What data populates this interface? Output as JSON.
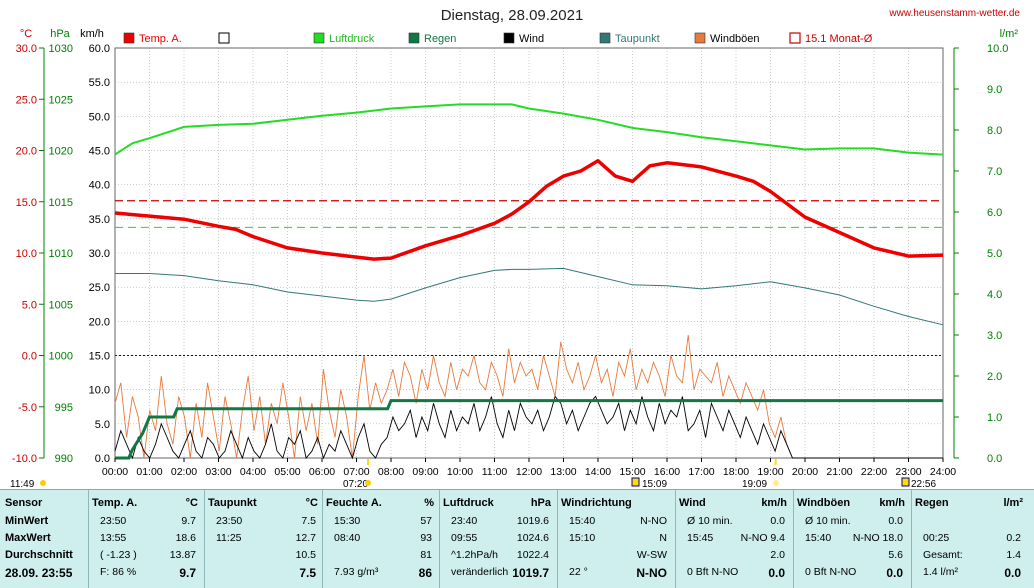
{
  "site": "www.heusenstamm-wetter.de",
  "title": "Dienstag, 28.09.2021",
  "colors": {
    "temp": "#ee0000",
    "pressure": "#22dd22",
    "rain": "#117744",
    "wind": "#000000",
    "dew": "#337777",
    "gust": "#e87a3c",
    "monthavg": "#cc0000",
    "zero": "#0000cc",
    "frame": "#008000"
  },
  "legend": [
    {
      "label": "Temp. A.",
      "color": "#ee0000",
      "style": "fill"
    },
    {
      "label": "",
      "color": "#ffffff",
      "style": "box"
    },
    {
      "label": "Luftdruck",
      "color": "#22dd22",
      "style": "fill"
    },
    {
      "label": "Regen",
      "color": "#117744",
      "style": "fill"
    },
    {
      "label": "Wind",
      "color": "#000000",
      "style": "fill"
    },
    {
      "label": "Taupunkt",
      "color": "#337777",
      "style": "fill"
    },
    {
      "label": "Windböen",
      "color": "#e87a3c",
      "style": "fill"
    },
    {
      "label": "15.1 Monat-Ø",
      "color": "#cc0000",
      "style": "outline"
    }
  ],
  "axis_units": {
    "temp": "°C",
    "pressure": "hPa",
    "wind": "km/h",
    "rain": "l/m²"
  },
  "ticks": {
    "temp": [
      "30.0",
      "25.0",
      "20.0",
      "15.0",
      "10.0",
      "5.0",
      "0.0",
      "-5.0",
      "-10.0"
    ],
    "pressure": [
      "1030",
      "1025",
      "1020",
      "1015",
      "1010",
      "1005",
      "1000",
      "995",
      "990"
    ],
    "wind": [
      "60.0",
      "55.0",
      "50.0",
      "45.0",
      "40.0",
      "35.0",
      "30.0",
      "25.0",
      "20.0",
      "15.0",
      "10.0",
      "5.0",
      "0.0"
    ],
    "rain": [
      "10.0",
      "9.0",
      "8.0",
      "7.0",
      "6.0",
      "5.0",
      "4.0",
      "3.0",
      "2.0",
      "1.0",
      "0.0"
    ],
    "time": [
      "00:00",
      "01:00",
      "02:00",
      "03:00",
      "04:00",
      "05:00",
      "06:00",
      "07:00",
      "08:00",
      "09:00",
      "10:00",
      "11:00",
      "12:00",
      "13:00",
      "14:00",
      "15:00",
      "16:00",
      "17:00",
      "18:00",
      "19:00",
      "20:00",
      "21:00",
      "22:00",
      "23:00",
      "24:00"
    ]
  },
  "sun_markers": {
    "left": "11:49",
    "sunrise": "07:20",
    "moon1": "15:09",
    "sunset": "19:09",
    "moon2": "22:56"
  },
  "chart_data": {
    "type": "line",
    "title": "Dienstag, 28.09.2021",
    "x_unit": "hours",
    "xlim": [
      0,
      24
    ],
    "ylim_temp": [
      -10,
      30
    ],
    "ylim_pressure": [
      990,
      1030
    ],
    "ylim_wind": [
      0,
      60
    ],
    "ylim_rain": [
      0,
      10
    ],
    "month_avg_temp": 15.1,
    "reference_lines": {
      "temp_green_dash": 12.5,
      "temp_zero": 0.0
    },
    "series": [
      {
        "name": "Temp. A.",
        "axis": "temp",
        "x": [
          0,
          1,
          2,
          3,
          3.5,
          4,
          5,
          6,
          7,
          7.5,
          8,
          9,
          10,
          11,
          11.5,
          12,
          12.5,
          13,
          13.5,
          14,
          14.5,
          15,
          15.5,
          16,
          17,
          18,
          18.5,
          19,
          20,
          21,
          22,
          23,
          24
        ],
        "values": [
          13.9,
          13.6,
          13.3,
          12.6,
          12.3,
          11.6,
          10.5,
          10.0,
          9.6,
          9.4,
          9.5,
          10.7,
          11.7,
          12.9,
          13.8,
          15.0,
          16.5,
          17.5,
          18.0,
          19.0,
          17.5,
          17.0,
          18.5,
          18.8,
          18.4,
          17.5,
          17.0,
          16.0,
          13.5,
          12.0,
          10.5,
          9.7,
          9.8
        ]
      },
      {
        "name": "Taupunkt",
        "axis": "temp",
        "x": [
          0,
          1,
          2,
          3,
          4,
          5,
          6,
          7,
          7.5,
          8,
          9,
          10,
          11,
          11.5,
          12,
          13,
          14,
          15,
          16,
          17,
          18,
          19,
          20,
          21,
          22,
          23,
          24
        ],
        "values": [
          8.0,
          8.0,
          7.8,
          7.3,
          6.9,
          6.2,
          5.8,
          5.4,
          5.3,
          5.5,
          6.6,
          7.6,
          8.3,
          8.4,
          8.4,
          8.5,
          7.7,
          6.9,
          6.8,
          6.5,
          6.8,
          7.2,
          6.6,
          5.9,
          4.8,
          3.8,
          3.0
        ]
      },
      {
        "name": "Luftdruck",
        "axis": "pressure",
        "x": [
          0,
          0.5,
          1,
          2,
          3,
          4,
          5,
          6,
          7,
          8,
          9,
          10,
          11,
          11.5,
          12,
          13,
          14,
          15,
          16,
          17,
          18,
          19,
          20,
          21,
          22,
          23,
          24
        ],
        "values": [
          1019.6,
          1020.7,
          1021.2,
          1022.3,
          1022.5,
          1022.6,
          1023.0,
          1023.4,
          1023.7,
          1024.1,
          1024.3,
          1024.5,
          1024.5,
          1024.5,
          1024.1,
          1023.6,
          1023.0,
          1022.2,
          1021.8,
          1021.3,
          1020.9,
          1020.5,
          1020.1,
          1020.2,
          1020.2,
          1019.8,
          1019.6
        ]
      },
      {
        "name": "Regen",
        "axis": "rain",
        "x": [
          0,
          0.4,
          0.5,
          0.8,
          1.0,
          1.7,
          1.8,
          2.0,
          7.9,
          8.0,
          24
        ],
        "values": [
          0,
          0,
          0.2,
          0.6,
          1.0,
          1.0,
          1.2,
          1.2,
          1.2,
          1.4,
          1.4
        ]
      },
      {
        "name": "Wind",
        "axis": "wind",
        "values": [
          1,
          4,
          2,
          0,
          3,
          1,
          0,
          2,
          5,
          3,
          1,
          0,
          2,
          4,
          1,
          0,
          3,
          2,
          0,
          1,
          4,
          2,
          0,
          3,
          1,
          0,
          2,
          5,
          1,
          0,
          3,
          2,
          4,
          0,
          1,
          3,
          0,
          2,
          1,
          4,
          2,
          0,
          3,
          5,
          1,
          0,
          2,
          3,
          6,
          4,
          5,
          7,
          3,
          6,
          4,
          8,
          5,
          3,
          7,
          4,
          6,
          5,
          8,
          4,
          6,
          9,
          5,
          3,
          7,
          4,
          8,
          6,
          5,
          7,
          4,
          6,
          9,
          8,
          5,
          7,
          4,
          6,
          8,
          9,
          7,
          5,
          6,
          8,
          4,
          7,
          5,
          9,
          6,
          4,
          8,
          5,
          7,
          6,
          9,
          4,
          5,
          7,
          3,
          8,
          6,
          4,
          7,
          5,
          3,
          6,
          4,
          2,
          5,
          3,
          1,
          4,
          2,
          0,
          0,
          0,
          0,
          0,
          0,
          0,
          0,
          0,
          0,
          0,
          0,
          0,
          0,
          0,
          0,
          0,
          0,
          0,
          0,
          0,
          0,
          0,
          0,
          0,
          0,
          0
        ]
      },
      {
        "name": "Windböen",
        "axis": "wind",
        "values": [
          8,
          11,
          3,
          9,
          6,
          0,
          7,
          4,
          12,
          5,
          2,
          9,
          6,
          0,
          8,
          3,
          11,
          6,
          1,
          9,
          5,
          0,
          7,
          12,
          4,
          9,
          2,
          8,
          5,
          11,
          6,
          0,
          9,
          4,
          8,
          2,
          13,
          7,
          3,
          10,
          6,
          0,
          9,
          15,
          7,
          11,
          8,
          10,
          13,
          9,
          14,
          12,
          8,
          13,
          10,
          15,
          11,
          9,
          14,
          10,
          13,
          12,
          15,
          11,
          10,
          14,
          12,
          9,
          16,
          11,
          14,
          12,
          13,
          10,
          15,
          12,
          9,
          17,
          13,
          11,
          14,
          10,
          12,
          15,
          11,
          13,
          9,
          14,
          12,
          16,
          10,
          13,
          11,
          14,
          12,
          9,
          15,
          12,
          11,
          18,
          10,
          13,
          12,
          11,
          14,
          9,
          12,
          10,
          8,
          11,
          9,
          7,
          10,
          5,
          3,
          6,
          2,
          0,
          0,
          0,
          0,
          0,
          0,
          0,
          0,
          0,
          0,
          0,
          0,
          0,
          0,
          0,
          0,
          0,
          0,
          0,
          0,
          0,
          0,
          0,
          0,
          0,
          0,
          0
        ]
      }
    ]
  },
  "stats": {
    "row_labels": [
      "Sensor",
      "MinWert",
      "MaxWert",
      "Durchschnitt",
      "28.09.  23:55"
    ],
    "temp": {
      "h": "Temp. A.",
      "u": "°C",
      "rows": [
        [
          "23:50",
          "9.7"
        ],
        [
          "13:55",
          "18.6"
        ],
        [
          "( -1.23 )",
          "13.87"
        ],
        [
          "F: 86 %",
          "9.7"
        ]
      ]
    },
    "dew": {
      "h": "Taupunkt",
      "u": "°C",
      "rows": [
        [
          "23:50",
          "7.5"
        ],
        [
          "11:25",
          "12.7"
        ],
        [
          "",
          "10.5"
        ],
        [
          "",
          "7.5"
        ]
      ]
    },
    "hum": {
      "h": "Feuchte A.",
      "u": "%",
      "rows": [
        [
          "15:30",
          "57"
        ],
        [
          "08:40",
          "93"
        ],
        [
          "",
          "81"
        ],
        [
          "7.93 g/m³",
          "86"
        ]
      ]
    },
    "press": {
      "h": "Luftdruck",
      "u": "hPa",
      "rows": [
        [
          "23:40",
          "1019.6"
        ],
        [
          "09:55",
          "1024.6"
        ],
        [
          "^1.2hPa/h",
          "1022.4"
        ],
        [
          "veränderlich",
          "1019.7"
        ]
      ]
    },
    "dir": {
      "h": "Windrichtung",
      "u": "",
      "rows": [
        [
          "15:40",
          "N-NO"
        ],
        [
          "15:10",
          "N"
        ],
        [
          "",
          "W-SW"
        ],
        [
          "22 °",
          "N-NO"
        ]
      ]
    },
    "wind": {
      "h": "Wind",
      "u": "km/h",
      "rows": [
        [
          "Ø 10 min.",
          "0.0"
        ],
        [
          "15:45",
          "N-NO 9.4"
        ],
        [
          "",
          "2.0"
        ],
        [
          "0 Bft N-NO",
          "0.0"
        ]
      ]
    },
    "gust": {
      "h": "Windböen",
      "u": "km/h",
      "rows": [
        [
          "Ø 10 min.",
          "0.0"
        ],
        [
          "15:40",
          "N-NO 18.0"
        ],
        [
          "",
          "5.6"
        ],
        [
          "0 Bft N-NO",
          "0.0"
        ]
      ]
    },
    "rain": {
      "h": "Regen",
      "u": "l/m²",
      "rows": [
        [
          "",
          ""
        ],
        [
          "00:25",
          "0.2"
        ],
        [
          "Gesamt:",
          "1.4"
        ],
        [
          "1.4 l/m²",
          "0.0"
        ]
      ]
    }
  }
}
